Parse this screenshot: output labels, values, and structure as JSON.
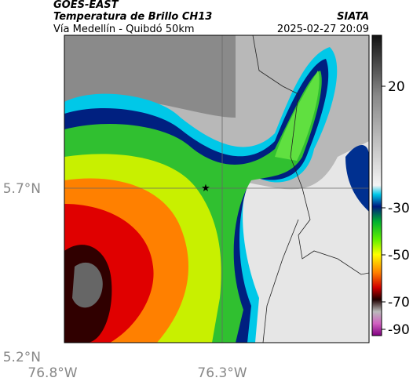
{
  "header": {
    "source": "GOES-EAST",
    "title": "Temperatura de Brillo CH13",
    "brand": "SIATA",
    "subtitle": "Vía Medellín - Quibdó 50km",
    "timestamp": "2025-02-27 20:09"
  },
  "map": {
    "lat_labels": [
      "5.7°N",
      "5.2°N"
    ],
    "lon_labels": [
      "76.8°W",
      "76.3°W"
    ]
  },
  "colorbar": {
    "tick_labels": [
      "20",
      "-30",
      "-50",
      "-70",
      "-90"
    ]
  }
}
